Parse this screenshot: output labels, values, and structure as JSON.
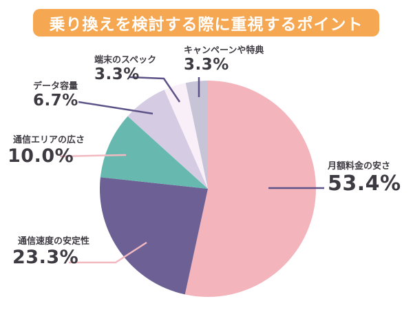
{
  "title": "乗り換えを検討する際に重視するポイント",
  "colors": {
    "background": "#FFFFFF",
    "banner_bg": "#F5A851",
    "banner_text": "#FFFFFF",
    "label_text": "#3E3A41",
    "leader_dark": "#5C5287",
    "leader_pink": "#F2B9C0"
  },
  "chart_data": {
    "type": "pie",
    "title": "乗り換えを検討する際に重視するポイント",
    "unit": "%",
    "start_angle_deg": 0,
    "direction": "clockwise",
    "legend_position": "callout-labels",
    "slices": [
      {
        "label": "月額料金の安さ",
        "value": 53.4,
        "display": "53.4%",
        "color": "#F4B4BC",
        "leader": "dark"
      },
      {
        "label": "通信速度の安定性",
        "value": 23.3,
        "display": "23.3%",
        "color": "#6C6094",
        "leader": "pink"
      },
      {
        "label": "通信エリアの広さ",
        "value": 10.0,
        "display": "10.0%",
        "color": "#67B9B0",
        "leader": "pink"
      },
      {
        "label": "データ容量",
        "value": 6.7,
        "display": "6.7%",
        "color": "#D5CCE3",
        "leader": "dark"
      },
      {
        "label": "端末のスペック",
        "value": 3.3,
        "display": "3.3%",
        "color": "#F9EFF9",
        "leader": "dark"
      },
      {
        "label": "キャンペーンや特典",
        "value": 3.3,
        "display": "3.3%",
        "color": "#C7C4D7",
        "leader": "dark"
      }
    ]
  }
}
